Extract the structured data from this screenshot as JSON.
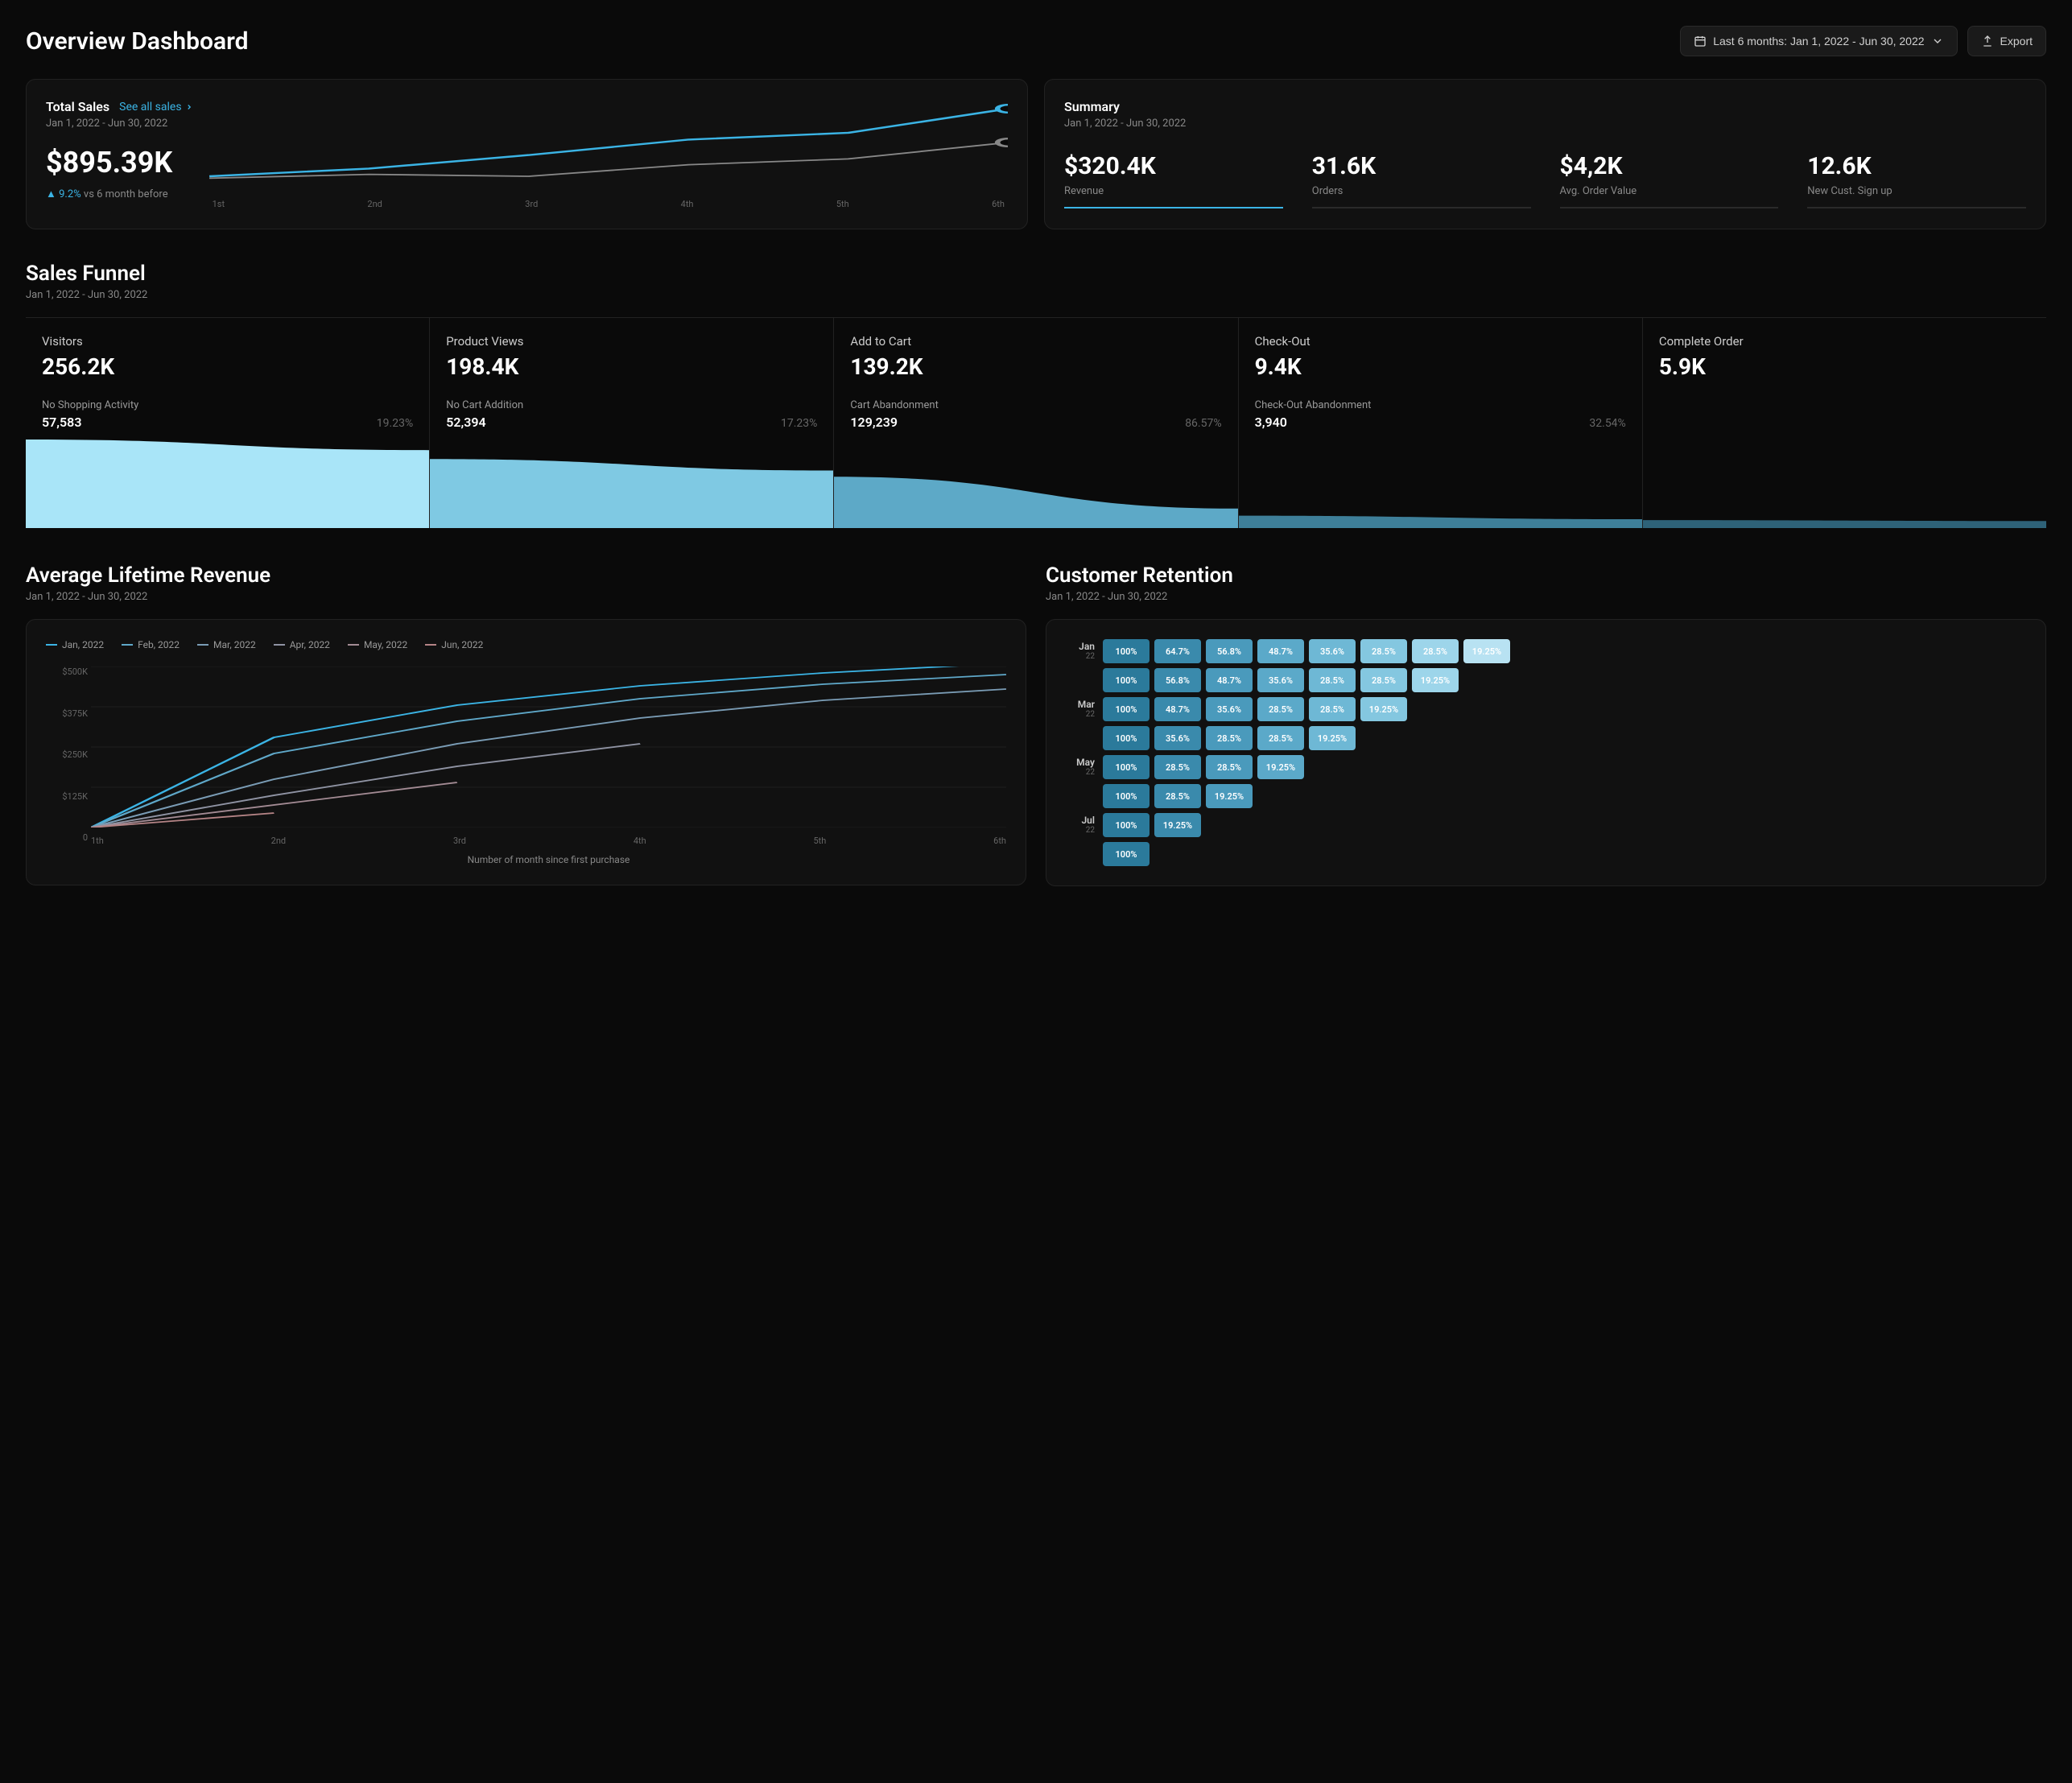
{
  "header": {
    "title": "Overview Dashboard",
    "date_range_label": "Last 6 months: Jan 1, 2022 - Jun 30, 2022",
    "export_label": "Export"
  },
  "total_sales": {
    "title": "Total Sales",
    "link_label": "See all sales",
    "date_range": "Jan 1, 2022 - Jun 30, 2022",
    "value": "$895.39K",
    "change_pct": "9.2%",
    "change_suffix": "vs 6 month before",
    "chart": {
      "type": "line",
      "x_labels": [
        "1st",
        "2nd",
        "3rd",
        "4th",
        "5th",
        "6th"
      ],
      "series": [
        {
          "name": "current",
          "color": "#3bb4e5",
          "width": 2,
          "values": [
            20,
            28,
            42,
            58,
            65,
            90
          ],
          "marker_last": true,
          "marker_color": "#3bb4e5",
          "marker_fill": "#0a0a0a"
        },
        {
          "name": "previous",
          "color": "#888888",
          "width": 1.5,
          "values": [
            18,
            22,
            20,
            32,
            38,
            55
          ],
          "marker_last": true,
          "marker_color": "#888888",
          "marker_fill": "#0a0a0a"
        }
      ],
      "ylim": [
        0,
        100
      ]
    }
  },
  "summary": {
    "title": "Summary",
    "date_range": "Jan 1, 2022 - Jun 30, 2022",
    "stats": [
      {
        "value": "$320.4K",
        "label": "Revenue",
        "active": true
      },
      {
        "value": "31.6K",
        "label": "Orders",
        "active": false
      },
      {
        "value": "$4,2K",
        "label": "Avg. Order Value",
        "active": false
      },
      {
        "value": "12.6K",
        "label": "New Cust. Sign up",
        "active": false
      }
    ]
  },
  "funnel": {
    "title": "Sales Funnel",
    "date_range": "Jan 1, 2022 - Jun 30, 2022",
    "columns": [
      {
        "title": "Visitors",
        "value": "256.2K",
        "sub_label": "No Shopping Activity",
        "sub_value": "57,583",
        "sub_pct": "19.23%"
      },
      {
        "title": "Product Views",
        "value": "198.4K",
        "sub_label": "No Cart Addition",
        "sub_value": "52,394",
        "sub_pct": "17.23%"
      },
      {
        "title": "Add to Cart",
        "value": "139.2K",
        "sub_label": "Cart Abandonment",
        "sub_value": "129,239",
        "sub_pct": "86.57%"
      },
      {
        "title": "Check-Out",
        "value": "9.4K",
        "sub_label": "Check-Out Abandonment",
        "sub_value": "3,940",
        "sub_pct": "32.54%"
      },
      {
        "title": "Complete Order",
        "value": "5.9K",
        "sub_label": "",
        "sub_value": "",
        "sub_pct": ""
      }
    ],
    "area": {
      "type": "area",
      "heights_start": [
        100,
        78,
        58,
        14,
        9
      ],
      "heights_end": [
        88,
        65,
        22,
        10,
        8
      ],
      "colors": [
        "#a9e5f8",
        "#7fc9e3",
        "#5da9c7",
        "#3e7f99",
        "#2e6278"
      ]
    }
  },
  "alr": {
    "title": "Average Lifetime Revenue",
    "date_range": "Jan 1, 2022 - Jun 30, 2022",
    "legend": [
      {
        "label": "Jan, 2022",
        "color": "#3bb4e5"
      },
      {
        "label": "Feb, 2022",
        "color": "#5fa8c9"
      },
      {
        "label": "Mar, 2022",
        "color": "#7a9cb5"
      },
      {
        "label": "Apr, 2022",
        "color": "#8f93a3"
      },
      {
        "label": "May, 2022",
        "color": "#a38b94"
      },
      {
        "label": "Jun, 2022",
        "color": "#b58486"
      }
    ],
    "chart": {
      "type": "line",
      "x_labels": [
        "1th",
        "2nd",
        "3rd",
        "4th",
        "5th",
        "6th"
      ],
      "y_labels": [
        "$500K",
        "$375K",
        "$250K",
        "$125K",
        "0"
      ],
      "ylim": [
        0,
        500
      ],
      "x_axis_title": "Number of month since first purchase",
      "series": [
        {
          "color": "#3bb4e5",
          "values": [
            0,
            280,
            380,
            440,
            480,
            510
          ]
        },
        {
          "color": "#5fa8c9",
          "values": [
            0,
            230,
            330,
            400,
            445,
            475
          ]
        },
        {
          "color": "#7a9cb5",
          "values": [
            0,
            150,
            260,
            340,
            395,
            430
          ]
        },
        {
          "color": "#8f93a3",
          "values": [
            0,
            100,
            190,
            260
          ]
        },
        {
          "color": "#a38b94",
          "values": [
            0,
            70,
            140
          ]
        },
        {
          "color": "#b58486",
          "values": [
            0,
            45
          ]
        }
      ],
      "line_width": 1.8
    }
  },
  "retention": {
    "title": "Customer Retention",
    "date_range": "Jan 1, 2022 - Jun 30, 2022",
    "row_labels": [
      {
        "mon": "Jan",
        "yr": "22"
      },
      {
        "mon": "",
        "yr": ""
      },
      {
        "mon": "Mar",
        "yr": "22"
      },
      {
        "mon": "",
        "yr": ""
      },
      {
        "mon": "May",
        "yr": "22"
      },
      {
        "mon": "",
        "yr": ""
      },
      {
        "mon": "Jul",
        "yr": "22"
      },
      {
        "mon": "",
        "yr": ""
      }
    ],
    "color_scale": [
      "#2b7a9b",
      "#3a8aac",
      "#4a9abc",
      "#5ba9c9",
      "#6eb8d5",
      "#84c7e0",
      "#9dd5ea",
      "#b8e2f2"
    ],
    "rows": [
      [
        {
          "v": "100%",
          "c": 0
        },
        {
          "v": "64.7%",
          "c": 1
        },
        {
          "v": "56.8%",
          "c": 2
        },
        {
          "v": "48.7%",
          "c": 3
        },
        {
          "v": "35.6%",
          "c": 4
        },
        {
          "v": "28.5%",
          "c": 5
        },
        {
          "v": "28.5%",
          "c": 6
        },
        {
          "v": "19.25%",
          "c": 7
        }
      ],
      [
        {
          "v": "100%",
          "c": 0
        },
        {
          "v": "56.8%",
          "c": 1
        },
        {
          "v": "48.7%",
          "c": 2
        },
        {
          "v": "35.6%",
          "c": 3
        },
        {
          "v": "28.5%",
          "c": 4
        },
        {
          "v": "28.5%",
          "c": 5
        },
        {
          "v": "19.25%",
          "c": 6
        }
      ],
      [
        {
          "v": "100%",
          "c": 0
        },
        {
          "v": "48.7%",
          "c": 1
        },
        {
          "v": "35.6%",
          "c": 2
        },
        {
          "v": "28.5%",
          "c": 3
        },
        {
          "v": "28.5%",
          "c": 4
        },
        {
          "v": "19.25%",
          "c": 5
        }
      ],
      [
        {
          "v": "100%",
          "c": 0
        },
        {
          "v": "35.6%",
          "c": 1
        },
        {
          "v": "28.5%",
          "c": 2
        },
        {
          "v": "28.5%",
          "c": 3
        },
        {
          "v": "19.25%",
          "c": 4
        }
      ],
      [
        {
          "v": "100%",
          "c": 0
        },
        {
          "v": "28.5%",
          "c": 1
        },
        {
          "v": "28.5%",
          "c": 2
        },
        {
          "v": "19.25%",
          "c": 3
        }
      ],
      [
        {
          "v": "100%",
          "c": 0
        },
        {
          "v": "28.5%",
          "c": 1
        },
        {
          "v": "19.25%",
          "c": 2
        }
      ],
      [
        {
          "v": "100%",
          "c": 0
        },
        {
          "v": "19.25%",
          "c": 1
        }
      ],
      [
        {
          "v": "100%",
          "c": 0
        }
      ]
    ]
  }
}
